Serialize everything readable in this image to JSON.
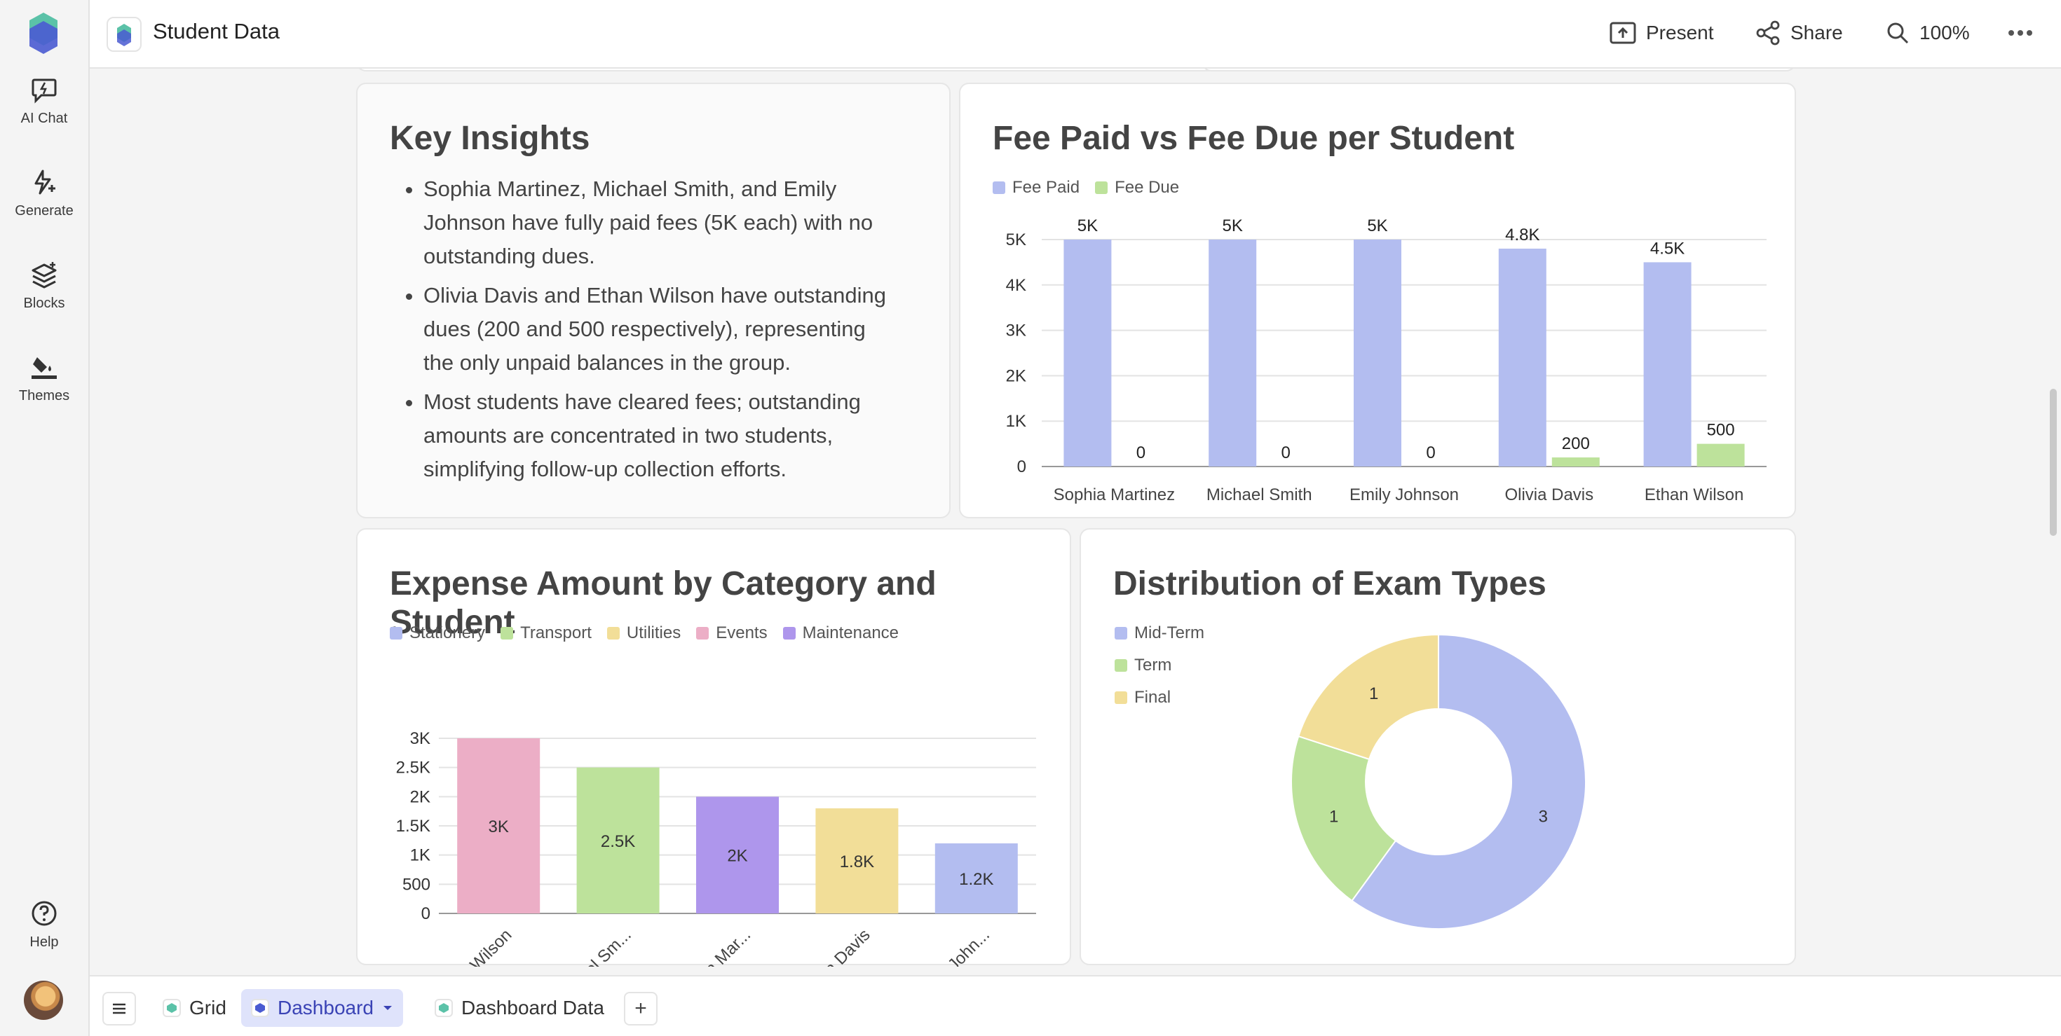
{
  "app": {
    "doc_title": "Student Data"
  },
  "rail": {
    "items": [
      {
        "label": "AI Chat"
      },
      {
        "label": "Generate"
      },
      {
        "label": "Blocks"
      },
      {
        "label": "Themes"
      }
    ],
    "help_label": "Help"
  },
  "toolbar": {
    "present_label": "Present",
    "share_label": "Share",
    "zoom_label": "100%"
  },
  "insights": {
    "title": "Key Insights",
    "bullets": [
      "Sophia Martinez, Michael Smith, and Emily Johnson have fully paid fees (5K each) with no outstanding dues.",
      "Olivia Davis and Ethan Wilson have outstanding dues (200 and 500 respectively), representing the only unpaid balances in the group.",
      "Most students have cleared fees; outstanding amounts are concentrated in two students, simplifying follow-up collection efforts."
    ]
  },
  "colors": {
    "blue": "#b3bdf0",
    "green": "#bde29b",
    "yellow": "#f2de98",
    "pink": "#ecaec6",
    "purple": "#ae96ec"
  },
  "chart_data": [
    {
      "type": "bar",
      "title": "Fee Paid vs Fee Due per Student",
      "categories": [
        "Sophia Martinez",
        "Michael Smith",
        "Emily Johnson",
        "Olivia Davis",
        "Ethan Wilson"
      ],
      "series": [
        {
          "name": "Fee Paid",
          "values": [
            5000,
            5000,
            5000,
            4800,
            4500
          ],
          "labels": [
            "5K",
            "5K",
            "5K",
            "4.8K",
            "4.5K"
          ],
          "color": "#b3bdf0"
        },
        {
          "name": "Fee Due",
          "values": [
            0,
            0,
            0,
            200,
            500
          ],
          "labels": [
            "0",
            "0",
            "0",
            "200",
            "500"
          ],
          "color": "#bde29b"
        }
      ],
      "ylim": [
        0,
        5000
      ],
      "yticks": [
        {
          "v": 0,
          "label": "0"
        },
        {
          "v": 1000,
          "label": "1K"
        },
        {
          "v": 2000,
          "label": "2K"
        },
        {
          "v": 3000,
          "label": "3K"
        },
        {
          "v": 4000,
          "label": "4K"
        },
        {
          "v": 5000,
          "label": "5K"
        }
      ],
      "grid": true,
      "legend": "top-left"
    },
    {
      "type": "bar",
      "title": "Expense Amount by Category and Student",
      "categories": [
        "Ethan Wilson",
        "Michael Sm...",
        "Sophia Mar...",
        "Olivia Davis",
        "Emily John..."
      ],
      "legend_items": [
        {
          "name": "Stationery",
          "color": "#b3bdf0"
        },
        {
          "name": "Transport",
          "color": "#bde29b"
        },
        {
          "name": "Utilities",
          "color": "#f2de98"
        },
        {
          "name": "Events",
          "color": "#ecaec6"
        },
        {
          "name": "Maintenance",
          "color": "#ae96ec"
        }
      ],
      "values": [
        3000,
        2500,
        2000,
        1800,
        1200
      ],
      "labels": [
        "3K",
        "2.5K",
        "2K",
        "1.8K",
        "1.2K"
      ],
      "bar_categories": [
        "Events",
        "Transport",
        "Maintenance",
        "Utilities",
        "Stationery"
      ],
      "ylim": [
        0,
        3000
      ],
      "yticks": [
        {
          "v": 0,
          "label": "0"
        },
        {
          "v": 500,
          "label": "500"
        },
        {
          "v": 1000,
          "label": "1K"
        },
        {
          "v": 1500,
          "label": "1.5K"
        },
        {
          "v": 2000,
          "label": "2K"
        },
        {
          "v": 2500,
          "label": "2.5K"
        },
        {
          "v": 3000,
          "label": "3K"
        }
      ],
      "grid": true,
      "legend": "top-left"
    },
    {
      "type": "pie",
      "title": "Distribution of Exam Types",
      "donut": true,
      "slices": [
        {
          "name": "Mid-Term",
          "value": 3,
          "color": "#b3bdf0"
        },
        {
          "name": "Term",
          "value": 1,
          "color": "#bde29b"
        },
        {
          "name": "Final",
          "value": 1,
          "color": "#f2de98"
        }
      ],
      "legend": "top-left"
    }
  ],
  "tabs": [
    {
      "label": "Grid"
    },
    {
      "label": "Dashboard"
    },
    {
      "label": "Dashboard Data"
    }
  ],
  "bottom": {
    "add_label": "+",
    "menu_icon": "hamburger-menu-icon"
  }
}
